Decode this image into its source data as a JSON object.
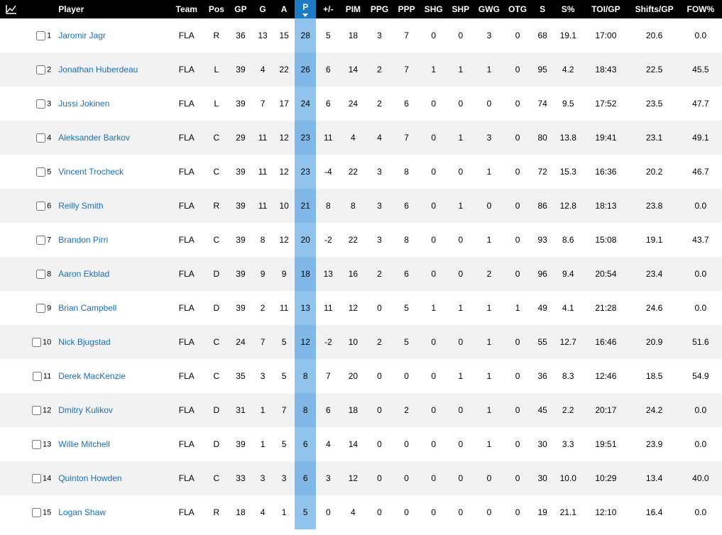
{
  "colors": {
    "header_bg": "#000000",
    "header_text": "#ffffff",
    "sorted_header_bg": "#1f7ac4",
    "row_odd_bg": "#ffffff",
    "row_even_bg": "#f2f2f2",
    "sorted_cell_odd_bg": "#91c4ec",
    "sorted_cell_even_bg": "#7fb8e6",
    "link_color": "#1d6fb8"
  },
  "sorted_column": "p",
  "sort_direction": "desc",
  "columns": [
    {
      "key": "chart",
      "label": "",
      "icon": "chart-icon"
    },
    {
      "key": "rank",
      "label": ""
    },
    {
      "key": "player",
      "label": "Player"
    },
    {
      "key": "team",
      "label": "Team"
    },
    {
      "key": "pos",
      "label": "Pos"
    },
    {
      "key": "gp",
      "label": "GP"
    },
    {
      "key": "g",
      "label": "G"
    },
    {
      "key": "a",
      "label": "A"
    },
    {
      "key": "p",
      "label": "P",
      "sorted": true
    },
    {
      "key": "pm",
      "label": "+/-"
    },
    {
      "key": "pim",
      "label": "PIM"
    },
    {
      "key": "ppg",
      "label": "PPG"
    },
    {
      "key": "ppp",
      "label": "PPP"
    },
    {
      "key": "shg",
      "label": "SHG"
    },
    {
      "key": "shp",
      "label": "SHP"
    },
    {
      "key": "gwg",
      "label": "GWG"
    },
    {
      "key": "otg",
      "label": "OTG"
    },
    {
      "key": "s",
      "label": "S"
    },
    {
      "key": "spct",
      "label": "S%"
    },
    {
      "key": "toi",
      "label": "TOI/GP"
    },
    {
      "key": "shifts",
      "label": "Shifts/GP"
    },
    {
      "key": "fow",
      "label": "FOW%"
    }
  ],
  "rows": [
    {
      "rank": 1,
      "player": "Jaromir Jagr",
      "team": "FLA",
      "pos": "R",
      "gp": 36,
      "g": 13,
      "a": 15,
      "p": 28,
      "pm": 5,
      "pim": 18,
      "ppg": 3,
      "ppp": 7,
      "shg": 0,
      "shp": 0,
      "gwg": 3,
      "otg": 0,
      "s": 68,
      "spct": "19.1",
      "toi": "17:00",
      "shifts": "20.6",
      "fow": "0.0"
    },
    {
      "rank": 2,
      "player": "Jonathan Huberdeau",
      "team": "FLA",
      "pos": "L",
      "gp": 39,
      "g": 4,
      "a": 22,
      "p": 26,
      "pm": 6,
      "pim": 14,
      "ppg": 2,
      "ppp": 7,
      "shg": 1,
      "shp": 1,
      "gwg": 1,
      "otg": 0,
      "s": 95,
      "spct": "4.2",
      "toi": "18:43",
      "shifts": "22.5",
      "fow": "45.5"
    },
    {
      "rank": 3,
      "player": "Jussi Jokinen",
      "team": "FLA",
      "pos": "L",
      "gp": 39,
      "g": 7,
      "a": 17,
      "p": 24,
      "pm": 6,
      "pim": 24,
      "ppg": 2,
      "ppp": 6,
      "shg": 0,
      "shp": 0,
      "gwg": 0,
      "otg": 0,
      "s": 74,
      "spct": "9.5",
      "toi": "17:52",
      "shifts": "23.5",
      "fow": "47.7"
    },
    {
      "rank": 4,
      "player": "Aleksander Barkov",
      "team": "FLA",
      "pos": "C",
      "gp": 29,
      "g": 11,
      "a": 12,
      "p": 23,
      "pm": 11,
      "pim": 4,
      "ppg": 4,
      "ppp": 7,
      "shg": 0,
      "shp": 1,
      "gwg": 3,
      "otg": 0,
      "s": 80,
      "spct": "13.8",
      "toi": "19:41",
      "shifts": "23.1",
      "fow": "49.1"
    },
    {
      "rank": 5,
      "player": "Vincent Trocheck",
      "team": "FLA",
      "pos": "C",
      "gp": 39,
      "g": 11,
      "a": 12,
      "p": 23,
      "pm": -4,
      "pim": 22,
      "ppg": 3,
      "ppp": 8,
      "shg": 0,
      "shp": 0,
      "gwg": 1,
      "otg": 0,
      "s": 72,
      "spct": "15.3",
      "toi": "16:36",
      "shifts": "20.2",
      "fow": "46.7"
    },
    {
      "rank": 6,
      "player": "Reilly Smith",
      "team": "FLA",
      "pos": "R",
      "gp": 39,
      "g": 11,
      "a": 10,
      "p": 21,
      "pm": 8,
      "pim": 8,
      "ppg": 3,
      "ppp": 6,
      "shg": 0,
      "shp": 1,
      "gwg": 0,
      "otg": 0,
      "s": 86,
      "spct": "12.8",
      "toi": "18:13",
      "shifts": "23.8",
      "fow": "0.0"
    },
    {
      "rank": 7,
      "player": "Brandon Pirri",
      "team": "FLA",
      "pos": "C",
      "gp": 39,
      "g": 8,
      "a": 12,
      "p": 20,
      "pm": -2,
      "pim": 22,
      "ppg": 3,
      "ppp": 8,
      "shg": 0,
      "shp": 0,
      "gwg": 1,
      "otg": 0,
      "s": 93,
      "spct": "8.6",
      "toi": "15:08",
      "shifts": "19.1",
      "fow": "43.7"
    },
    {
      "rank": 8,
      "player": "Aaron Ekblad",
      "team": "FLA",
      "pos": "D",
      "gp": 39,
      "g": 9,
      "a": 9,
      "p": 18,
      "pm": 13,
      "pim": 16,
      "ppg": 2,
      "ppp": 6,
      "shg": 0,
      "shp": 0,
      "gwg": 2,
      "otg": 0,
      "s": 96,
      "spct": "9.4",
      "toi": "20:54",
      "shifts": "23.4",
      "fow": "0.0"
    },
    {
      "rank": 9,
      "player": "Brian Campbell",
      "team": "FLA",
      "pos": "D",
      "gp": 39,
      "g": 2,
      "a": 11,
      "p": 13,
      "pm": 11,
      "pim": 12,
      "ppg": 0,
      "ppp": 5,
      "shg": 1,
      "shp": 1,
      "gwg": 1,
      "otg": 1,
      "s": 49,
      "spct": "4.1",
      "toi": "21:28",
      "shifts": "24.6",
      "fow": "0.0"
    },
    {
      "rank": 10,
      "player": "Nick Bjugstad",
      "team": "FLA",
      "pos": "C",
      "gp": 24,
      "g": 7,
      "a": 5,
      "p": 12,
      "pm": -2,
      "pim": 10,
      "ppg": 2,
      "ppp": 5,
      "shg": 0,
      "shp": 0,
      "gwg": 1,
      "otg": 0,
      "s": 55,
      "spct": "12.7",
      "toi": "16:46",
      "shifts": "20.9",
      "fow": "51.6"
    },
    {
      "rank": 11,
      "player": "Derek MacKenzie",
      "team": "FLA",
      "pos": "C",
      "gp": 35,
      "g": 3,
      "a": 5,
      "p": 8,
      "pm": 7,
      "pim": 20,
      "ppg": 0,
      "ppp": 0,
      "shg": 0,
      "shp": 1,
      "gwg": 1,
      "otg": 0,
      "s": 36,
      "spct": "8.3",
      "toi": "12:46",
      "shifts": "18.5",
      "fow": "54.9"
    },
    {
      "rank": 12,
      "player": "Dmitry Kulikov",
      "team": "FLA",
      "pos": "D",
      "gp": 31,
      "g": 1,
      "a": 7,
      "p": 8,
      "pm": 6,
      "pim": 18,
      "ppg": 0,
      "ppp": 2,
      "shg": 0,
      "shp": 0,
      "gwg": 1,
      "otg": 0,
      "s": 45,
      "spct": "2.2",
      "toi": "20:17",
      "shifts": "24.2",
      "fow": "0.0"
    },
    {
      "rank": 13,
      "player": "Willie Mitchell",
      "team": "FLA",
      "pos": "D",
      "gp": 39,
      "g": 1,
      "a": 5,
      "p": 6,
      "pm": 4,
      "pim": 14,
      "ppg": 0,
      "ppp": 0,
      "shg": 0,
      "shp": 0,
      "gwg": 1,
      "otg": 0,
      "s": 30,
      "spct": "3.3",
      "toi": "19:51",
      "shifts": "23.9",
      "fow": "0.0"
    },
    {
      "rank": 14,
      "player": "Quinton Howden",
      "team": "FLA",
      "pos": "C",
      "gp": 33,
      "g": 3,
      "a": 3,
      "p": 6,
      "pm": 3,
      "pim": 12,
      "ppg": 0,
      "ppp": 0,
      "shg": 0,
      "shp": 0,
      "gwg": 0,
      "otg": 0,
      "s": 30,
      "spct": "10.0",
      "toi": "10:29",
      "shifts": "13.4",
      "fow": "40.0"
    },
    {
      "rank": 15,
      "player": "Logan Shaw",
      "team": "FLA",
      "pos": "R",
      "gp": 18,
      "g": 4,
      "a": 1,
      "p": 5,
      "pm": 0,
      "pim": 4,
      "ppg": 0,
      "ppp": 0,
      "shg": 0,
      "shp": 0,
      "gwg": 0,
      "otg": 0,
      "s": 19,
      "spct": "21.1",
      "toi": "12:10",
      "shifts": "16.4",
      "fow": "0.0"
    }
  ]
}
